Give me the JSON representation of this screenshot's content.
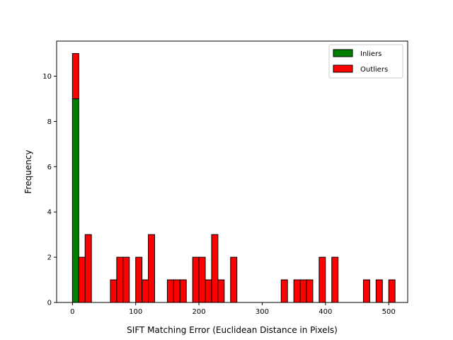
{
  "chart_data": {
    "type": "bar",
    "subtype": "stacked-histogram",
    "title": "",
    "xlabel": "SIFT Matching Error (Euclidean Distance in Pixels)",
    "ylabel": "Frequency",
    "xlim": [
      -25,
      530
    ],
    "ylim": [
      0,
      11.55
    ],
    "xticks": [
      0,
      100,
      200,
      300,
      400,
      500
    ],
    "yticks": [
      0,
      2,
      4,
      6,
      8,
      10
    ],
    "bin_width": 10,
    "grid": false,
    "legend": {
      "placement": "top-right",
      "entries": [
        "Inliers",
        "Outliers"
      ]
    },
    "series": [
      {
        "name": "Inliers",
        "color": "#008000",
        "bins": [
          {
            "x": 5,
            "value": 9
          }
        ]
      },
      {
        "name": "Outliers",
        "color": "#ff0000",
        "bins": [
          {
            "x": 5,
            "value": 2
          },
          {
            "x": 15,
            "value": 2
          },
          {
            "x": 25,
            "value": 3
          },
          {
            "x": 65,
            "value": 1
          },
          {
            "x": 75,
            "value": 2
          },
          {
            "x": 85,
            "value": 2
          },
          {
            "x": 105,
            "value": 2
          },
          {
            "x": 115,
            "value": 1
          },
          {
            "x": 125,
            "value": 3
          },
          {
            "x": 155,
            "value": 1
          },
          {
            "x": 165,
            "value": 1
          },
          {
            "x": 175,
            "value": 1
          },
          {
            "x": 195,
            "value": 2
          },
          {
            "x": 205,
            "value": 2
          },
          {
            "x": 215,
            "value": 1
          },
          {
            "x": 225,
            "value": 3
          },
          {
            "x": 235,
            "value": 1
          },
          {
            "x": 255,
            "value": 2
          },
          {
            "x": 335,
            "value": 1
          },
          {
            "x": 355,
            "value": 1
          },
          {
            "x": 365,
            "value": 1
          },
          {
            "x": 375,
            "value": 1
          },
          {
            "x": 395,
            "value": 2
          },
          {
            "x": 415,
            "value": 2
          },
          {
            "x": 465,
            "value": 1
          },
          {
            "x": 485,
            "value": 1
          },
          {
            "x": 505,
            "value": 1
          }
        ]
      }
    ]
  }
}
